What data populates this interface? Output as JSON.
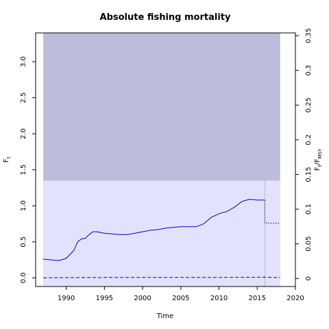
{
  "chart_data": {
    "type": "line",
    "title": "Absolute fishing mortality",
    "xlabel": "Time",
    "ylabel_left": {
      "base": "F",
      "sub": "t"
    },
    "ylabel_right": {
      "base": "F",
      "sub1": "t",
      "sep": "/F",
      "sub2": "MSY"
    },
    "xlim": [
      1986,
      2020
    ],
    "ylim_left": [
      -0.12,
      3.4
    ],
    "ylim_right": [
      -0.0115,
      0.354
    ],
    "x_ticks": [
      1990,
      1995,
      2000,
      2005,
      2010,
      2015,
      2020
    ],
    "y_ticks_left": [
      0.0,
      0.5,
      1.0,
      1.5,
      2.0,
      2.5,
      3.0
    ],
    "y_ticks_left_labels": [
      "0.0",
      "0.5",
      "1.0",
      "1.5",
      "2.0",
      "2.5",
      "3.0"
    ],
    "y_ticks_right": [
      0,
      0.05,
      0.1,
      0.15,
      0.2,
      0.25,
      0.3,
      0.35
    ],
    "y_ticks_right_labels": [
      "0",
      "0.05",
      "0.1",
      "0.15",
      "0.2",
      "0.25",
      "0.3",
      "0.35"
    ],
    "bands": {
      "x": [
        1987,
        2018
      ],
      "outer": {
        "y": [
          -0.12,
          3.4
        ],
        "color": "#bcbcdc"
      },
      "inner": {
        "y": [
          -0.12,
          1.35
        ],
        "color": "#e2e2fc"
      }
    },
    "vline": {
      "x": 2016,
      "color": "#b8b8d0"
    },
    "colors": {
      "line": "#0000cc"
    },
    "series": [
      {
        "style": "solid",
        "x": [
          1987,
          1988,
          1989,
          1990,
          1991,
          1991.5,
          1992,
          1992.5,
          1993,
          1993.5,
          1994,
          1995,
          1996,
          1997,
          1998,
          1999,
          2000,
          2001,
          2002,
          2003,
          2004,
          2005,
          2006,
          2007,
          2008,
          2009,
          2010,
          2011,
          2012,
          2013,
          2014,
          2015,
          2016
        ],
        "y": [
          0.26,
          0.25,
          0.24,
          0.27,
          0.38,
          0.5,
          0.54,
          0.55,
          0.6,
          0.64,
          0.64,
          0.62,
          0.61,
          0.6,
          0.6,
          0.62,
          0.64,
          0.66,
          0.67,
          0.69,
          0.7,
          0.71,
          0.71,
          0.71,
          0.75,
          0.84,
          0.89,
          0.92,
          0.98,
          1.06,
          1.09,
          1.08,
          1.08
        ]
      },
      {
        "style": "dotted",
        "x": [
          2016,
          2016,
          2018
        ],
        "y": [
          1.08,
          0.76,
          0.76
        ]
      },
      {
        "style": "dashed",
        "x": [
          1987,
          1990,
          1995,
          2000,
          2005,
          2010,
          2015,
          2016,
          2017,
          2018
        ],
        "y": [
          0.0,
          0.004,
          0.006,
          0.006,
          0.006,
          0.007,
          0.008,
          0.01,
          0.006,
          0.005
        ]
      }
    ]
  }
}
